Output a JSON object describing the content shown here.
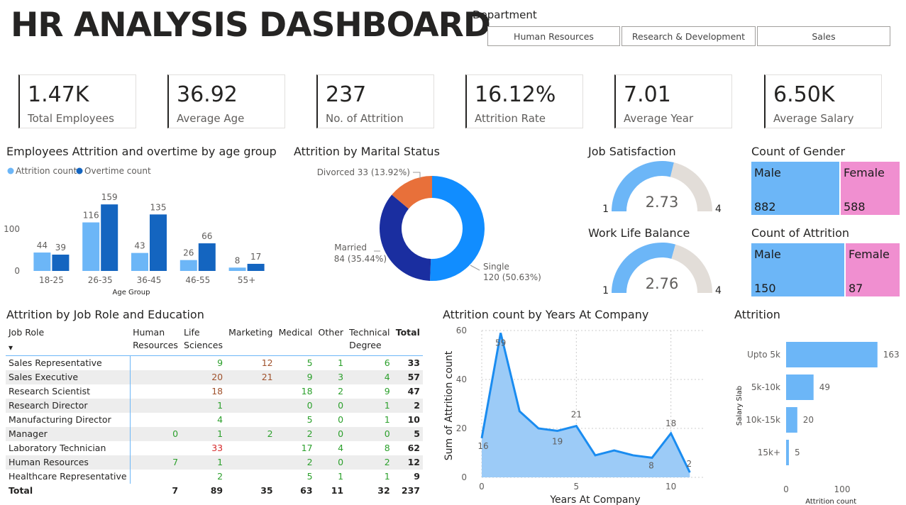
{
  "title": "HR ANALYSIS DASHBOARD",
  "slicer": {
    "label": "Department",
    "options": [
      "Human Resources",
      "Research & Development",
      "Sales"
    ]
  },
  "kpis": [
    {
      "value": "1.47K",
      "label": "Total Employees"
    },
    {
      "value": "36.92",
      "label": "Average Age"
    },
    {
      "value": "237",
      "label": "No. of Attrition"
    },
    {
      "value": "16.12%",
      "label": "Attrition Rate"
    },
    {
      "value": "7.01",
      "label": "Average Year"
    },
    {
      "value": "6.50K",
      "label": "Average Salary"
    }
  ],
  "colors": {
    "light_blue": "#6cb6f7",
    "dark_blue": "#1465c0",
    "orange": "#e8703a",
    "navy": "#1a2ea0",
    "bright_blue": "#118dff",
    "pink": "#f08fd0",
    "gauge_bg": "#e2ddd8",
    "area": "#9ccbf7",
    "area_line": "#1a8cf0"
  },
  "chart_data": [
    {
      "type": "bar",
      "title": "Employees Attrition and overtime by age group",
      "xlabel": "Age Group",
      "categories": [
        "18-25",
        "26-35",
        "36-45",
        "46-55",
        "55+"
      ],
      "series": [
        {
          "name": "Attrition count",
          "values": [
            44,
            116,
            43,
            26,
            8
          ]
        },
        {
          "name": "Overtime count",
          "values": [
            39,
            159,
            135,
            66,
            17
          ]
        }
      ],
      "yticks": [
        0,
        100
      ],
      "ylim": [
        0,
        170
      ],
      "legend": "top-left"
    },
    {
      "type": "pie",
      "title": "Attrition by Marital Status",
      "slices": [
        {
          "label": "Single",
          "value": 120,
          "percent": "50.63%"
        },
        {
          "label": "Married",
          "value": 84,
          "percent": "35.44%"
        },
        {
          "label": "Divorced",
          "value": 33,
          "percent": "13.92%"
        }
      ],
      "labels": [
        "Single\n120 (50.63%)",
        "Married\n84 (35.44%)",
        "Divorced 33 (13.92%)"
      ]
    },
    {
      "type": "gauge",
      "title": "Job Satisfaction",
      "min": 1,
      "max": 4,
      "value": 2.73,
      "value_label": "2.73",
      "min_label": "1",
      "max_label": "4"
    },
    {
      "type": "gauge",
      "title": "Work Life Balance",
      "min": 1,
      "max": 4,
      "value": 2.76,
      "value_label": "2.76",
      "min_label": "1",
      "max_label": "4"
    },
    {
      "type": "treemap",
      "title": "Count of Gender",
      "items": [
        {
          "label": "Male",
          "value": 882
        },
        {
          "label": "Female",
          "value": 588
        }
      ]
    },
    {
      "type": "treemap",
      "title": "Count of Attrition",
      "items": [
        {
          "label": "Male",
          "value": 150
        },
        {
          "label": "Female",
          "value": 87
        }
      ]
    },
    {
      "type": "table",
      "title": "Attrition by Job Role and Education",
      "columns": [
        "Job Role",
        "Human Resources",
        "Life Sciences",
        "Marketing",
        "Medical",
        "Other",
        "Technical Degree",
        "Total"
      ],
      "column_display": [
        "Job Role",
        "Human\nResources",
        "Life\nSciences",
        "Marketing",
        "Medical",
        "Other",
        "Technical\nDegree",
        "Total"
      ],
      "rows": [
        [
          "Sales Representative",
          "",
          "9",
          "12",
          "5",
          "1",
          "6",
          "33"
        ],
        [
          "Sales Executive",
          "",
          "20",
          "21",
          "9",
          "3",
          "4",
          "57"
        ],
        [
          "Research Scientist",
          "",
          "18",
          "",
          "18",
          "2",
          "9",
          "47"
        ],
        [
          "Research Director",
          "",
          "1",
          "",
          "0",
          "0",
          "1",
          "2"
        ],
        [
          "Manufacturing Director",
          "",
          "4",
          "",
          "5",
          "0",
          "1",
          "10"
        ],
        [
          "Manager",
          "0",
          "1",
          "2",
          "2",
          "0",
          "0",
          "5"
        ],
        [
          "Laboratory Technician",
          "",
          "33",
          "",
          "17",
          "4",
          "8",
          "62"
        ],
        [
          "Human Resources",
          "7",
          "1",
          "",
          "2",
          "0",
          "2",
          "12"
        ],
        [
          "Healthcare Representative",
          "",
          "2",
          "",
          "5",
          "1",
          "1",
          "9"
        ]
      ],
      "total": [
        "Total",
        "7",
        "89",
        "35",
        "63",
        "11",
        "32",
        "237"
      ]
    },
    {
      "type": "area",
      "title": "Attrition count by Years At Company",
      "xlabel": "Years At Company",
      "ylabel": "Sum of Attrition count",
      "x": [
        0,
        1,
        2,
        3,
        4,
        5,
        6,
        7,
        8,
        9,
        10,
        11
      ],
      "y": [
        16,
        59,
        27,
        20,
        19,
        21,
        9,
        11,
        9,
        8,
        18,
        2
      ],
      "labeled_points": [
        0,
        1,
        4,
        5,
        9,
        10,
        11
      ],
      "xticks": [
        0,
        5,
        10
      ],
      "yticks": [
        0,
        20,
        40,
        60
      ],
      "xlim": [
        0,
        12
      ],
      "ylim": [
        0,
        60
      ]
    },
    {
      "type": "bar",
      "orientation": "horizontal",
      "title": "Attrition",
      "xlabel": "Attrition count",
      "ylabel": "Salary Slab",
      "categories": [
        "Upto 5k",
        "5k-10k",
        "10k-15k",
        "15k+"
      ],
      "values": [
        163,
        49,
        20,
        5
      ],
      "xticks": [
        0,
        100
      ],
      "xlim": [
        0,
        170
      ]
    }
  ]
}
